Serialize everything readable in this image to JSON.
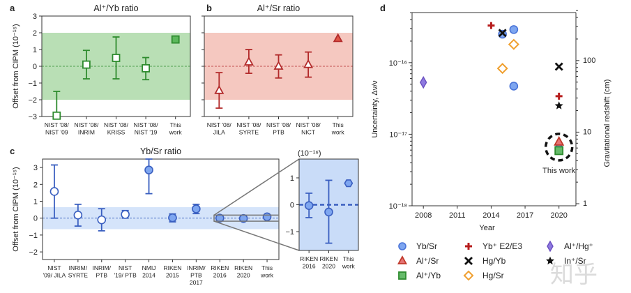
{
  "chart_data": [
    {
      "id": "a",
      "type": "scatter",
      "panel_letter": "a",
      "title": "Al⁺/Yb ratio",
      "ylabel": "Offset from CIPM (10⁻¹⁵)",
      "ylim": [
        -3,
        3
      ],
      "yticks": [
        "3",
        "2",
        "1",
        "0",
        "−1",
        "−2",
        "−3"
      ],
      "ytick_values": [
        3,
        2,
        1,
        0,
        -1,
        -2,
        -3
      ],
      "band": [
        -2,
        2
      ],
      "color": "#2e8b2e",
      "band_color": "#b9dfb5",
      "categories": [
        [
          "NIST '08/",
          "NIST '09"
        ],
        [
          "NIST '08/",
          "INRIM"
        ],
        [
          "NIST '08/",
          "KRISS"
        ],
        [
          "NIST '08/",
          "NIST '19"
        ],
        [
          "This",
          "work"
        ]
      ],
      "values": [
        -2.95,
        0.1,
        0.5,
        -0.12,
        1.6
      ],
      "err_low": [
        -3.0,
        -0.75,
        -0.75,
        -0.8,
        null
      ],
      "err_high": [
        -1.5,
        0.95,
        1.75,
        0.52,
        null
      ],
      "filled": [
        false,
        false,
        false,
        false,
        true
      ],
      "marker": "square"
    },
    {
      "id": "b",
      "type": "scatter",
      "panel_letter": "b",
      "title": "Al⁺/Sr ratio",
      "ylim": [
        -3,
        3
      ],
      "ytick_values": [
        3,
        2,
        1,
        0,
        -1,
        -2,
        -3
      ],
      "band": [
        -2,
        2
      ],
      "color": "#b22a2a",
      "band_color": "#f5c8c0",
      "categories": [
        [
          "NIST '08/",
          "JILA"
        ],
        [
          "NIST '08/",
          "SYRTE"
        ],
        [
          "NIST '08/",
          "PTB"
        ],
        [
          "NIST '08/",
          "NICT"
        ],
        [
          "This",
          "work"
        ]
      ],
      "values": [
        -1.45,
        0.25,
        0.0,
        0.1,
        1.65
      ],
      "err_low": [
        -2.5,
        -0.42,
        -0.7,
        -0.65,
        null
      ],
      "err_high": [
        -0.38,
        1.0,
        0.68,
        0.85,
        null
      ],
      "filled": [
        false,
        false,
        false,
        false,
        true
      ],
      "marker": "triangle"
    },
    {
      "id": "c",
      "type": "scatter",
      "panel_letter": "c",
      "title": "Yb/Sr ratio",
      "ylabel": "Offset from CIPM (10⁻¹⁵)",
      "ylim": [
        -2.45,
        3.5
      ],
      "yticks": [
        "3",
        "2",
        "1",
        "0",
        "−1",
        "−2"
      ],
      "ytick_values": [
        3,
        2,
        1,
        0,
        -1,
        -2
      ],
      "band": [
        -0.65,
        0.65
      ],
      "color": "#3a5fc0",
      "fill_color": "#7ea6f0",
      "band_color": "#d5e4fa",
      "categories": [
        [
          "NIST",
          "'09/ JILA"
        ],
        [
          "INRIM/",
          "SYRTE"
        ],
        [
          "INRIM/",
          "PTB"
        ],
        [
          "NIST",
          "'19/ PTB"
        ],
        [
          "NMIJ",
          "2014"
        ],
        [
          "RIKEN",
          "2015"
        ],
        [
          "INRIM/",
          "PTB",
          "2017"
        ],
        [
          "RIKEN",
          "2016"
        ],
        [
          "RIKEN",
          "2020"
        ],
        [
          "This",
          "work"
        ]
      ],
      "values": [
        1.58,
        0.18,
        -0.1,
        0.22,
        2.85,
        0.02,
        0.55,
        0.0,
        -0.02,
        0.08
      ],
      "err_low": [
        0.0,
        -0.47,
        -0.75,
        0.0,
        1.45,
        -0.22,
        0.27,
        null,
        null,
        null
      ],
      "err_high": [
        3.15,
        0.82,
        0.56,
        0.45,
        3.5,
        0.25,
        0.82,
        null,
        null,
        null
      ],
      "filled": [
        false,
        false,
        false,
        false,
        true,
        true,
        true,
        true,
        true,
        true
      ],
      "marker": "circle"
    },
    {
      "id": "c-inset",
      "type": "scatter",
      "unit_label": "(10⁻¹⁶)",
      "ylim": [
        -1.7,
        1.7
      ],
      "ytick_values": [
        1,
        0,
        -1
      ],
      "yticks": [
        "1",
        "0",
        "−1"
      ],
      "color": "#3a5fc0",
      "fill_color": "#7ea6f0",
      "bg_color": "#c9dcf8",
      "categories": [
        [
          "RIKEN",
          "2016"
        ],
        [
          "RIKEN",
          "2020"
        ],
        [
          "This",
          "work"
        ]
      ],
      "values": [
        -0.03,
        -0.27,
        0.8
      ],
      "err_low": [
        -0.48,
        -1.43,
        null
      ],
      "err_high": [
        0.43,
        0.91,
        null
      ],
      "markers": [
        "circle",
        "circle",
        "hexagon"
      ]
    },
    {
      "id": "d",
      "type": "scatter",
      "panel_letter": "d",
      "xlabel": "Year",
      "ylabel": "Uncertainty, Δν/ν",
      "y2label": "Gravitational redshift (cm)",
      "xlim": [
        2007,
        2021.5
      ],
      "xticks": [
        2008,
        2011,
        2014,
        2017,
        2020
      ],
      "ylim_log10": [
        -18,
        -15.3
      ],
      "yticks": [
        "10⁻¹⁶",
        "10⁻¹⁷",
        "10⁻¹⁸"
      ],
      "ytick_exp": [
        -16,
        -17,
        -18
      ],
      "y2ticks": [
        "100",
        "10",
        "1"
      ],
      "annotation": "This work",
      "series": [
        {
          "name": "Yb/Sr",
          "marker": "circle",
          "color": "#4a74d8",
          "fill": "#7ea6f0",
          "points": [
            [
              2015,
              2.5e-16
            ],
            [
              2016,
              2.9e-16
            ],
            [
              2016,
              4.7e-17
            ],
            [
              2020,
              6.3e-18
            ]
          ]
        },
        {
          "name": "Al⁺/Sr",
          "marker": "triangle",
          "color": "#c0392b",
          "fill": "#e57373",
          "points": [
            [
              2020,
              7.8e-18
            ]
          ]
        },
        {
          "name": "Al⁺/Yb",
          "marker": "square",
          "color": "#2e8b2e",
          "fill": "#66bb6a",
          "points": [
            [
              2020,
              5.9e-18
            ]
          ]
        },
        {
          "name": "Yb⁺ E2/E3",
          "marker": "plus",
          "color": "#b71c1c",
          "fill": "#b71c1c",
          "points": [
            [
              2014,
              3.3e-16
            ],
            [
              2020,
              3.4e-17
            ]
          ]
        },
        {
          "name": "Hg/Yb",
          "marker": "x",
          "color": "#111111",
          "fill": "#111111",
          "points": [
            [
              2015,
              2.6e-16
            ],
            [
              2020,
              8.8e-17
            ]
          ]
        },
        {
          "name": "Hg/Sr",
          "marker": "diamond",
          "color": "#f0a030",
          "fill": "#ffffff",
          "points": [
            [
              2016,
              1.8e-16
            ],
            [
              2015,
              8.3e-17
            ]
          ]
        },
        {
          "name": "Al⁺/Hg⁺",
          "marker": "thin-diamond",
          "color": "#6a4fc0",
          "fill": "#8e7ae0",
          "points": [
            [
              2008,
              5.3e-17
            ]
          ]
        },
        {
          "name": "In⁺/Sr",
          "marker": "star",
          "color": "#111111",
          "fill": "#111111",
          "points": [
            [
              2020,
              2.5e-17
            ]
          ]
        }
      ]
    }
  ],
  "watermark": "知乎"
}
